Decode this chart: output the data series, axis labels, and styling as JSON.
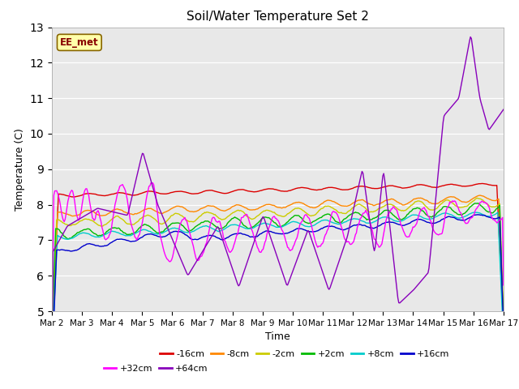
{
  "title": "Soil/Water Temperature Set 2",
  "ylabel": "Temperature (C)",
  "xlabel": "Time",
  "annotation": "EE_met",
  "ylim": [
    5.0,
    13.0
  ],
  "yticks": [
    5.0,
    6.0,
    7.0,
    8.0,
    9.0,
    10.0,
    11.0,
    12.0,
    13.0
  ],
  "xlim": [
    0,
    15
  ],
  "xtick_labels": [
    "Mar 2",
    "Mar 3",
    "Mar 4",
    "Mar 5",
    "Mar 6",
    "Mar 7",
    "Mar 8",
    "Mar 9",
    "Mar 10",
    "Mar 11",
    "Mar 12",
    "Mar 13",
    "Mar 14",
    "Mar 15",
    "Mar 16",
    "Mar 17"
  ],
  "colors": {
    "-16cm": "#dd0000",
    "-8cm": "#ff8800",
    "-2cm": "#cccc00",
    "+2cm": "#00bb00",
    "+8cm": "#00cccc",
    "+16cm": "#0000cc",
    "+32cm": "#ff00ff",
    "+64cm": "#8800bb"
  },
  "lw": 1.0,
  "bg_color": "#e8e8e8",
  "fig_bg": "#ffffff",
  "ann_text_color": "#880000",
  "ann_bg_color": "#ffffaa",
  "ann_edge_color": "#886600"
}
